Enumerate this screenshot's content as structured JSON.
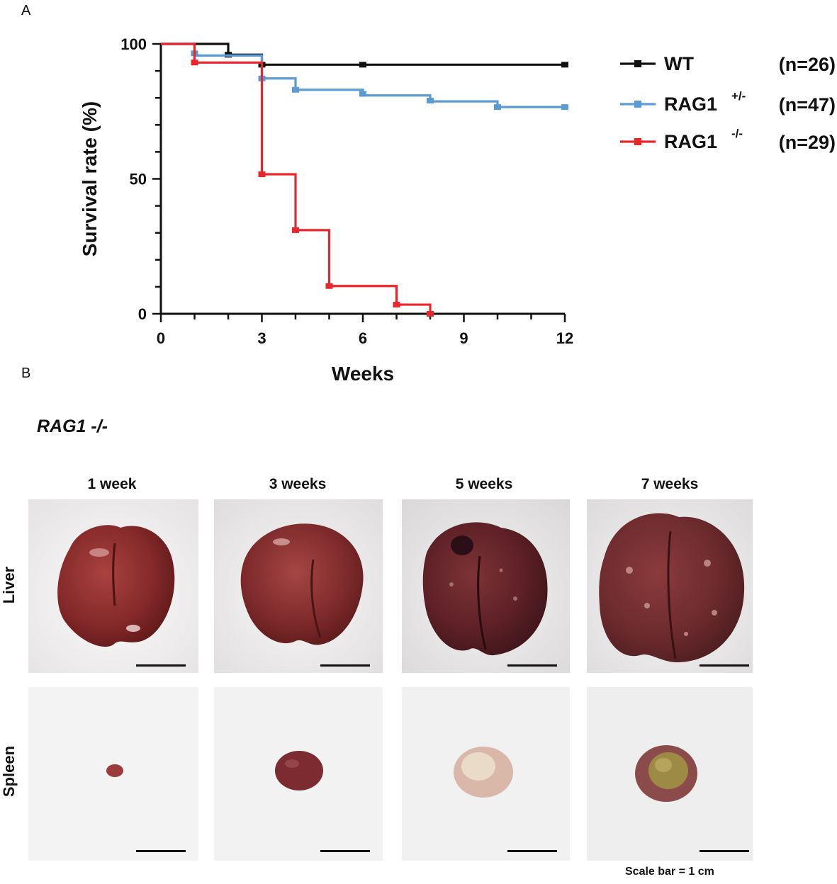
{
  "panel_a": {
    "letter": "A"
  },
  "panel_b": {
    "letter": "B",
    "genotype_title": "RAG1 -/-",
    "columns": [
      "1 week",
      "3 weeks",
      "5 weeks",
      "7 weeks"
    ],
    "rows": [
      "Liver",
      "Spleen"
    ],
    "scale_note": "Scale bar = 1 cm"
  },
  "chart_data": {
    "type": "line",
    "subtype": "kaplan-meier step survival",
    "title": "",
    "xlabel": "Weeks",
    "ylabel": "Survival rate (%)",
    "xlim": [
      0,
      12
    ],
    "ylim": [
      0,
      100
    ],
    "xticks": [
      0,
      3,
      6,
      9,
      12
    ],
    "yticks": [
      0,
      50,
      100
    ],
    "legend_position": "right",
    "series": [
      {
        "name": "WT",
        "name_sup": "",
        "n_label": "(n=26)",
        "color": "#111111",
        "x": [
          0,
          2,
          3,
          12
        ],
        "y": [
          100,
          96,
          92.3,
          92.3
        ],
        "censor_x": [
          2,
          3,
          6,
          12
        ],
        "censor_y": [
          96,
          92.3,
          92.3,
          92.3
        ]
      },
      {
        "name": "RAG1",
        "name_sup": "+/-",
        "n_label": "(n=47)",
        "color": "#5b9bd5",
        "x": [
          0,
          1,
          3,
          4,
          6,
          8,
          10,
          12
        ],
        "y": [
          100,
          95.7,
          87.2,
          83,
          80.9,
          78.7,
          76.6,
          76.6
        ],
        "censor_x": [
          1,
          3,
          4,
          6,
          8,
          10,
          12
        ],
        "censor_y": [
          96.5,
          87.2,
          83,
          81.5,
          79,
          76.6,
          76.6
        ]
      },
      {
        "name": "RAG1",
        "name_sup": "-/-",
        "n_label": "(n=29)",
        "color": "#e8262b",
        "x": [
          0,
          1,
          3,
          4,
          5,
          7,
          8
        ],
        "y": [
          100,
          93.1,
          51.7,
          31,
          10.3,
          3.4,
          0
        ],
        "censor_x": [
          1,
          3,
          4,
          5,
          7,
          8
        ],
        "censor_y": [
          93.1,
          51.7,
          31,
          10.3,
          3.4,
          0
        ]
      }
    ]
  }
}
